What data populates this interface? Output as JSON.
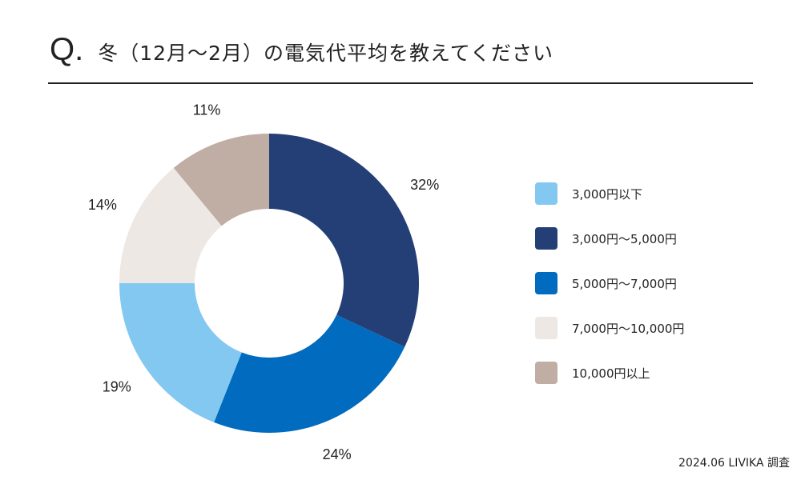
{
  "header": {
    "q_mark": "Q.",
    "title": "冬（12月〜2月）の電気代平均を教えてください"
  },
  "chart_data": {
    "type": "pie",
    "variant": "donut",
    "categories": [
      "3,000円以下",
      "3,000円〜5,000円",
      "5,000円〜7,000円",
      "7,000円〜10,000円",
      "10,000円以上"
    ],
    "values": [
      19,
      32,
      24,
      14,
      11
    ],
    "value_labels": [
      "19%",
      "32%",
      "24%",
      "14%",
      "11%"
    ],
    "unit": "%",
    "colors": [
      "#82c8f0",
      "#243f76",
      "#006bbf",
      "#ede8e4",
      "#c0aea5"
    ],
    "legend_position": "right",
    "slice_order_clockwise_from_top": [
      1,
      2,
      0,
      3,
      4
    ]
  },
  "footer": {
    "source": "2024.06 LIVIKA 調査"
  }
}
